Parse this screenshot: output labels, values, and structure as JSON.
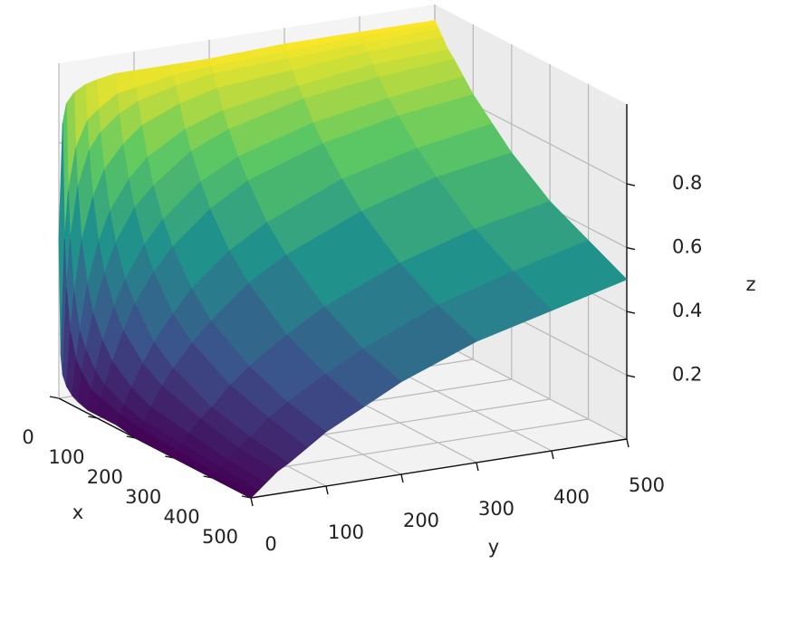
{
  "chart_data": {
    "type": "surface",
    "x": [
      0,
      5,
      10,
      20,
      35,
      50,
      75,
      100,
      150,
      200,
      300,
      400,
      500
    ],
    "y": [
      0,
      5,
      10,
      20,
      35,
      50,
      75,
      100,
      150,
      200,
      300,
      400,
      500
    ],
    "z": [
      [
        0.5,
        0.86,
        0.92,
        0.95,
        0.97,
        0.98,
        0.99,
        0.99,
        0.99,
        0.99,
        1.0,
        1.0,
        1.0
      ],
      [
        0.14,
        0.5,
        0.65,
        0.78,
        0.86,
        0.89,
        0.93,
        0.94,
        0.96,
        0.97,
        0.98,
        0.99,
        0.99
      ],
      [
        0.08,
        0.35,
        0.5,
        0.66,
        0.77,
        0.82,
        0.87,
        0.9,
        0.93,
        0.95,
        0.96,
        0.97,
        0.98
      ],
      [
        0.05,
        0.22,
        0.34,
        0.5,
        0.63,
        0.71,
        0.78,
        0.83,
        0.88,
        0.91,
        0.93,
        0.95,
        0.96
      ],
      [
        0.03,
        0.14,
        0.23,
        0.37,
        0.5,
        0.59,
        0.68,
        0.74,
        0.81,
        0.85,
        0.89,
        0.92,
        0.93
      ],
      [
        0.02,
        0.11,
        0.18,
        0.29,
        0.41,
        0.5,
        0.6,
        0.66,
        0.75,
        0.8,
        0.86,
        0.89,
        0.91
      ],
      [
        0.01,
        0.07,
        0.13,
        0.22,
        0.32,
        0.4,
        0.5,
        0.57,
        0.67,
        0.73,
        0.8,
        0.84,
        0.87
      ],
      [
        0.01,
        0.06,
        0.1,
        0.17,
        0.26,
        0.34,
        0.43,
        0.5,
        0.6,
        0.67,
        0.75,
        0.8,
        0.83
      ],
      [
        0.01,
        0.04,
        0.07,
        0.12,
        0.19,
        0.25,
        0.33,
        0.4,
        0.5,
        0.57,
        0.67,
        0.73,
        0.77
      ],
      [
        0.0,
        0.03,
        0.05,
        0.09,
        0.15,
        0.2,
        0.27,
        0.33,
        0.43,
        0.5,
        0.6,
        0.67,
        0.71
      ],
      [
        0.0,
        0.02,
        0.04,
        0.07,
        0.11,
        0.14,
        0.2,
        0.25,
        0.33,
        0.4,
        0.5,
        0.57,
        0.62
      ],
      [
        0.0,
        0.01,
        0.03,
        0.05,
        0.08,
        0.11,
        0.16,
        0.2,
        0.27,
        0.33,
        0.43,
        0.5,
        0.56
      ],
      [
        0.0,
        0.01,
        0.02,
        0.04,
        0.07,
        0.09,
        0.13,
        0.17,
        0.23,
        0.29,
        0.38,
        0.44,
        0.5
      ]
    ],
    "xlim": [
      0,
      500
    ],
    "ylim": [
      0,
      500
    ],
    "zlim": [
      0,
      1.05
    ],
    "xticks": [
      0,
      100,
      200,
      300,
      400,
      500
    ],
    "yticks": [
      0,
      100,
      200,
      300,
      400,
      500
    ],
    "zticks": [
      0.2,
      0.4,
      0.6,
      0.8
    ],
    "xlabel": "x",
    "ylabel": "y",
    "zlabel": "z",
    "colormap": "viridis",
    "grid": true
  }
}
